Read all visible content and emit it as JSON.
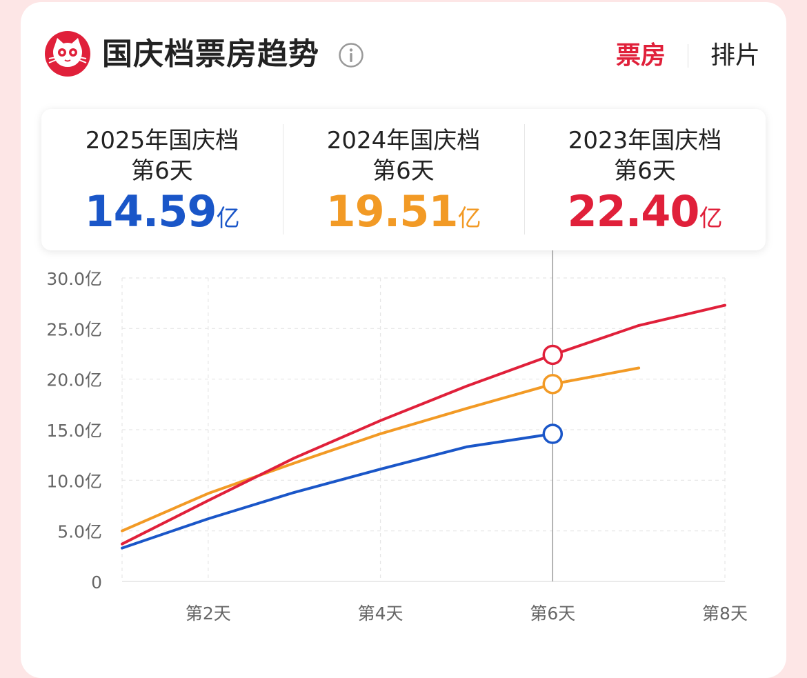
{
  "header": {
    "title": "国庆档票房趋势",
    "info_icon": "info-icon",
    "logo_icon": "maoyan-cat-logo",
    "tabs": [
      {
        "label": "票房",
        "active": true
      },
      {
        "label": "排片",
        "active": false
      }
    ]
  },
  "summary": [
    {
      "label": "2025年国庆档",
      "day": "第6天",
      "value": "14.59",
      "unit": "亿",
      "color": "#1a56c8"
    },
    {
      "label": "2024年国庆档",
      "day": "第6天",
      "value": "19.51",
      "unit": "亿",
      "color": "#f29a25"
    },
    {
      "label": "2023年国庆档",
      "day": "第6天",
      "value": "22.40",
      "unit": "亿",
      "color": "#e0203a"
    }
  ],
  "colors": {
    "accent": "#e0203a",
    "y2025": "#1a56c8",
    "y2024": "#f29a25",
    "y2023": "#e0203a"
  },
  "chart_data": {
    "type": "line",
    "x": [
      1,
      2,
      3,
      4,
      5,
      6,
      7,
      8
    ],
    "xlim": [
      1,
      8
    ],
    "x_ticks": [
      2,
      4,
      6,
      8
    ],
    "x_tick_labels": [
      "第2天",
      "第4天",
      "第6天",
      "第8天"
    ],
    "ylim": [
      0,
      30
    ],
    "y_ticks": [
      0,
      5,
      10,
      15,
      20,
      25,
      30
    ],
    "y_tick_labels": [
      "0",
      "5.0亿",
      "10.0亿",
      "15.0亿",
      "20.0亿",
      "25.0亿",
      "30.0亿"
    ],
    "grid": true,
    "highlight_x": 6,
    "series": [
      {
        "name": "2025年国庆档",
        "color": "#1a56c8",
        "x": [
          1,
          2,
          3,
          4,
          5,
          6
        ],
        "values": [
          3.3,
          6.2,
          8.8,
          11.1,
          13.3,
          14.59
        ]
      },
      {
        "name": "2024年国庆档",
        "color": "#f29a25",
        "x": [
          1,
          2,
          3,
          4,
          5,
          6,
          7
        ],
        "values": [
          5.0,
          8.7,
          11.7,
          14.6,
          17.1,
          19.51,
          21.1
        ]
      },
      {
        "name": "2023年国庆档",
        "color": "#e0203a",
        "x": [
          1,
          2,
          3,
          4,
          5,
          6,
          7,
          8
        ],
        "values": [
          3.7,
          8.0,
          12.2,
          15.9,
          19.3,
          22.4,
          25.3,
          27.3
        ]
      }
    ]
  }
}
